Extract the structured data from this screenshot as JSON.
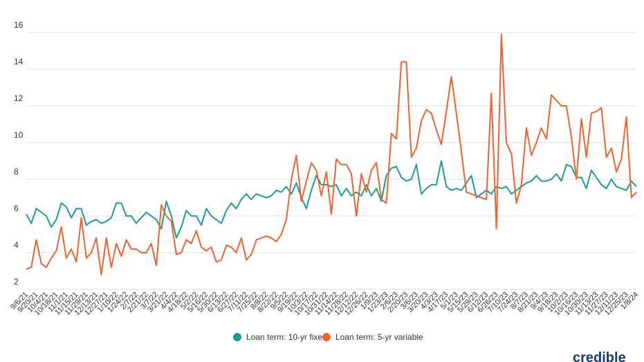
{
  "chart_data": {
    "type": "line",
    "categories": [
      "9/6/21",
      null,
      "9/20/21",
      null,
      "10/4/21",
      null,
      "10/18/21",
      null,
      "11/1/21",
      null,
      "11/15/21",
      null,
      "11/29/21",
      null,
      "12/13/21",
      null,
      "12/27/21",
      null,
      "1/10/22",
      null,
      "1/24/22",
      null,
      "2/7/22",
      null,
      "2/21/22",
      null,
      "3/7/22",
      null,
      "3/21/22",
      null,
      "4/4/22",
      null,
      "4/18/22",
      null,
      "5/2/22",
      null,
      "5/16/22",
      null,
      "5/30/22",
      null,
      "6/13/22",
      null,
      "6/27/22",
      null,
      "7/11/22",
      null,
      "7/25/22",
      null,
      "8/8/22",
      null,
      "8/22/22",
      null,
      "9/5/22",
      null,
      "9/19/22",
      null,
      "10/3/22",
      null,
      "10/17/22",
      null,
      "10/31/22",
      null,
      "11/14/22",
      null,
      "11/28/22",
      null,
      "12/12/22",
      null,
      "12/26/22",
      null,
      "1/9/23",
      null,
      "1/23/23",
      null,
      "2/6/23",
      null,
      "2/20/23",
      null,
      "3/6/23",
      null,
      "3/20/23",
      null,
      "4/3/23",
      null,
      "4/17/23",
      null,
      "5/1/23",
      null,
      "5/15/23",
      null,
      "5/29/23",
      null,
      "6/12/23",
      null,
      "6/26/23",
      null,
      "7/10/23",
      null,
      "7/24/23",
      null,
      "8/7/23",
      null,
      "8/21/23",
      null,
      "9/4/23",
      null,
      "9/18/23",
      null,
      "10/2/23",
      null,
      "10/16/23",
      null,
      "10/30/23",
      null,
      "11/13/23",
      null,
      "11/27/23",
      null,
      "12/11/23",
      null,
      "12/25/23",
      null,
      "1/8/24"
    ],
    "series": [
      {
        "name": "Loan term: 10-yr fixed",
        "color": "#1b9a9b",
        "values": [
          6.1,
          5.6,
          6.4,
          6.2,
          6.0,
          5.4,
          5.8,
          6.7,
          6.5,
          5.9,
          6.4,
          6.4,
          5.5,
          5.7,
          5.8,
          5.6,
          5.7,
          5.9,
          6.7,
          6.7,
          6.0,
          6.0,
          5.6,
          5.9,
          6.2,
          6.0,
          5.8,
          5.3,
          6.8,
          6.0,
          4.8,
          5.4,
          6.3,
          6.0,
          6.0,
          5.5,
          6.4,
          6.0,
          5.8,
          5.6,
          6.3,
          6.7,
          6.4,
          6.9,
          7.2,
          6.9,
          7.2,
          7.1,
          7.0,
          7.1,
          7.4,
          7.3,
          7.6,
          7.2,
          7.8,
          7.0,
          6.4,
          7.4,
          8.2,
          7.7,
          7.7,
          7.6,
          7.7,
          7.1,
          7.5,
          7.1,
          7.3,
          7.1,
          7.7,
          7.1,
          7.5,
          6.8,
          8.2,
          8.6,
          8.7,
          8.1,
          7.9,
          8.0,
          8.8,
          7.2,
          7.5,
          7.7,
          7.7,
          9.0,
          7.6,
          7.4,
          7.5,
          7.4,
          7.8,
          8.2,
          7.0,
          7.2,
          7.4,
          7.2,
          7.6,
          7.5,
          7.6,
          7.2,
          7.4,
          7.6,
          7.8,
          7.9,
          8.2,
          7.9,
          7.9,
          8.0,
          8.3,
          7.9,
          8.8,
          8.7,
          8.1,
          8.1,
          7.5,
          8.5,
          8.1,
          7.7,
          7.5,
          8.0,
          7.6,
          7.5,
          7.4,
          7.9,
          7.6
        ]
      },
      {
        "name": "Loan term: 5-yr variable",
        "color": "#f0612b",
        "values": [
          3.1,
          3.2,
          4.7,
          3.4,
          3.2,
          3.7,
          4.1,
          5.4,
          3.7,
          4.2,
          3.5,
          5.9,
          3.7,
          4.0,
          4.8,
          2.8,
          4.8,
          3.2,
          4.5,
          3.8,
          4.7,
          4.2,
          4.2,
          4.0,
          4.0,
          4.5,
          3.3,
          6.6,
          6.0,
          5.7,
          3.9,
          4.0,
          4.7,
          4.5,
          5.2,
          4.3,
          4.1,
          4.3,
          3.5,
          3.6,
          4.4,
          4.3,
          4.0,
          4.8,
          3.6,
          3.9,
          4.7,
          4.8,
          4.9,
          4.8,
          4.6,
          5.0,
          5.8,
          8.0,
          9.3,
          6.8,
          7.9,
          8.9,
          8.5,
          7.1,
          8.4,
          6.1,
          9.1,
          8.8,
          8.8,
          8.3,
          6.0,
          8.3,
          7.3,
          8.5,
          8.9,
          6.9,
          6.7,
          10.5,
          10.2,
          14.4,
          14.4,
          9.2,
          9.7,
          11.2,
          11.8,
          11.6,
          10.7,
          9.9,
          11.7,
          13.6,
          11.6,
          9.5,
          7.3,
          7.2,
          7.1,
          7.0,
          6.9,
          12.7,
          5.3,
          15.9,
          10.0,
          9.4,
          6.7,
          7.7,
          10.8,
          9.3,
          10.0,
          10.8,
          10.2,
          12.6,
          12.3,
          12.0,
          12.0,
          10.3,
          8.0,
          11.3,
          9.2,
          11.6,
          11.7,
          11.9,
          9.2,
          9.7,
          8.4,
          9.1,
          11.4,
          7.0,
          7.3
        ]
      }
    ],
    "ylim": [
      2,
      16
    ],
    "yticks": [
      2,
      4,
      6,
      8,
      10,
      12,
      14,
      16
    ],
    "grid": true,
    "legend": "bottom"
  },
  "logo": "credible"
}
